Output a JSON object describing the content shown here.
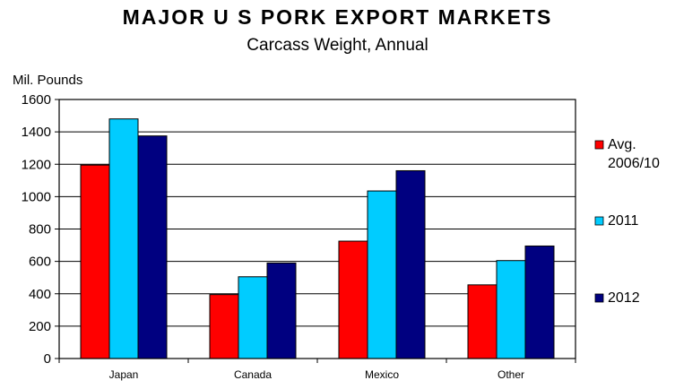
{
  "chart_data": {
    "type": "bar",
    "title": "MAJOR U S PORK EXPORT MARKETS",
    "subtitle": "Carcass Weight, Annual",
    "ylabel": "Mil. Pounds",
    "xlabel": "",
    "ylim": [
      0,
      1600
    ],
    "yticks": [
      0,
      200,
      400,
      600,
      800,
      1000,
      1200,
      1400,
      1600
    ],
    "grid": true,
    "legend_position": "right",
    "categories": [
      "Japan",
      "Canada",
      "Mexico",
      "Other"
    ],
    "series": [
      {
        "name": "Avg. 2006/10",
        "name_lines": [
          "Avg.",
          "2006/10"
        ],
        "color": "#ff0000",
        "values": [
          1195,
          395,
          725,
          455
        ]
      },
      {
        "name": "2011",
        "name_lines": [
          "2011"
        ],
        "color": "#00ccff",
        "values": [
          1480,
          505,
          1035,
          605
        ]
      },
      {
        "name": "2012",
        "name_lines": [
          "2012"
        ],
        "color": "#000080",
        "values": [
          1375,
          590,
          1160,
          695
        ]
      }
    ]
  }
}
